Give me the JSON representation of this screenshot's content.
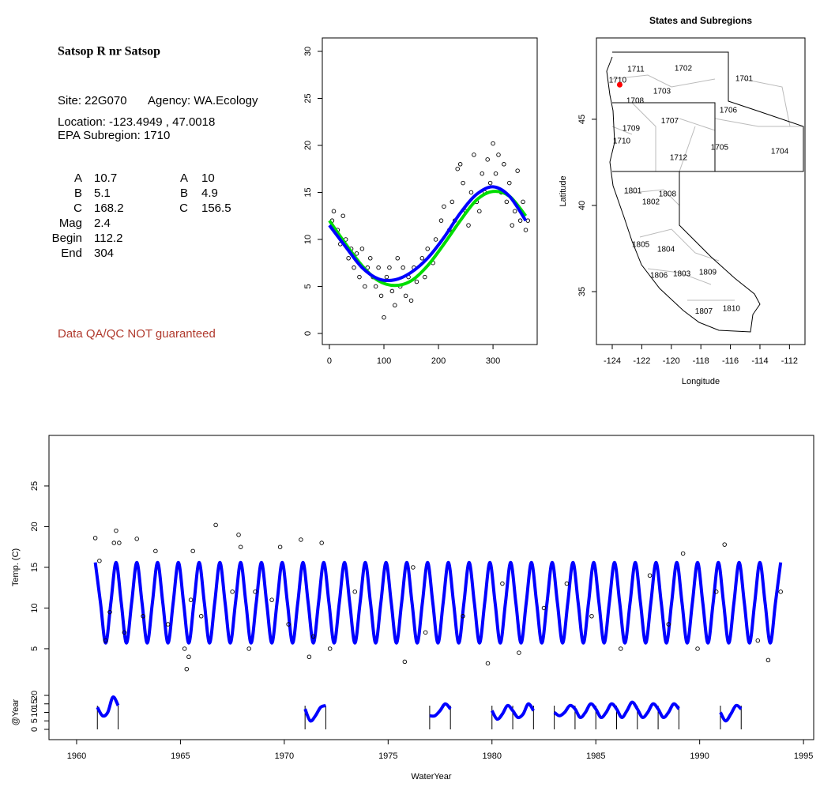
{
  "info": {
    "title": "Satsop R nr Satsop",
    "site": "Site: 22G070",
    "agency": "Agency: WA.Ecology",
    "location": "Location: -123.4949 , 47.0018",
    "subregion": "EPA Subregion: 1710",
    "params": [
      [
        "A",
        10.7,
        "A",
        10
      ],
      [
        "B",
        5.1,
        "B",
        4.9
      ],
      [
        "C",
        168.2,
        "C",
        156.5
      ],
      [
        "Mag",
        2.4
      ],
      [
        "Begin",
        112.2
      ],
      [
        "End",
        304
      ]
    ],
    "note": "Data QA/QC NOT guaranteed"
  },
  "chart_data": [
    {
      "type": "scatter",
      "xlim": [
        -13,
        381
      ],
      "ylim": [
        -1.18,
        31.43
      ],
      "xticks": [
        0,
        100,
        200,
        300
      ],
      "yticks": [
        0,
        5,
        10,
        15,
        20,
        25,
        30
      ],
      "series": [
        {
          "type": "scatter",
          "color": "#000000",
          "x": [
            5,
            8,
            15,
            20,
            25,
            30,
            35,
            40,
            45,
            50,
            55,
            60,
            65,
            70,
            75,
            80,
            85,
            90,
            95,
            100,
            105,
            110,
            115,
            120,
            125,
            130,
            135,
            140,
            145,
            150,
            155,
            160,
            170,
            175,
            180,
            190,
            195,
            205,
            210,
            220,
            225,
            230,
            235,
            240,
            245,
            250,
            255,
            260,
            265,
            270,
            275,
            280,
            285,
            290,
            295,
            300,
            305,
            310,
            315,
            320,
            325,
            330,
            335,
            340,
            345,
            350,
            355,
            360,
            364
          ],
          "values": [
            12,
            13,
            11,
            9.5,
            12.5,
            10,
            8,
            9,
            7,
            8.5,
            6,
            9,
            5,
            7,
            8,
            6,
            5,
            7,
            4,
            1.7,
            6,
            7,
            4.5,
            3,
            8,
            5,
            7,
            4,
            6,
            3.5,
            7,
            5.5,
            8,
            6,
            9,
            7.5,
            10,
            12,
            13.5,
            11,
            14,
            12,
            17.5,
            18,
            16,
            13,
            11.5,
            15,
            19,
            14,
            13,
            17,
            15,
            18.5,
            16,
            20.2,
            17,
            19,
            15,
            18,
            14,
            16,
            11.5,
            13,
            17.3,
            12,
            14,
            11,
            12
          ]
        },
        {
          "type": "line",
          "color": "#00dd00",
          "x": [
            0,
            30,
            60,
            90,
            120,
            150,
            180,
            210,
            240,
            270,
            300,
            330,
            360
          ],
          "values": [
            12,
            9.5,
            7.2,
            5.6,
            5.1,
            5.6,
            7.2,
            9.5,
            12,
            14.2,
            15.1,
            14.6,
            12.5
          ]
        },
        {
          "type": "line",
          "color": "#0000ff",
          "x": [
            0,
            30,
            60,
            90,
            120,
            150,
            180,
            210,
            240,
            270,
            300,
            330,
            360
          ],
          "values": [
            11.5,
            9.2,
            7,
            5.8,
            5.7,
            6.5,
            8,
            10.2,
            12.8,
            14.8,
            15.6,
            14.6,
            12
          ]
        }
      ]
    },
    {
      "type": "map",
      "title": "States and Subregions",
      "xlabel": "Longitude",
      "ylabel": "Latitude",
      "xlim": [
        -125.07,
        -110.95
      ],
      "ylim": [
        31.93,
        49.72
      ],
      "xticks": [
        -124,
        -122,
        -120,
        -118,
        -116,
        -114,
        -112
      ],
      "yticks": [
        35,
        40,
        45
      ],
      "regions": [
        {
          "label": "1702",
          "x": -119.19,
          "y": 47.94
        },
        {
          "label": "1701",
          "x": -115.07,
          "y": 47.34
        },
        {
          "label": "1711",
          "x": -122.4,
          "y": 47.89
        },
        {
          "label": "1710",
          "x": -123.63,
          "y": 47.25
        },
        {
          "label": "1703",
          "x": -120.63,
          "y": 46.6
        },
        {
          "label": "1708",
          "x": -122.45,
          "y": 46.06
        },
        {
          "label": "1706",
          "x": -116.14,
          "y": 45.5
        },
        {
          "label": "1707",
          "x": -120.1,
          "y": 44.9
        },
        {
          "label": "1709",
          "x": -122.72,
          "y": 44.45
        },
        {
          "label": "1710",
          "x": -123.36,
          "y": 43.72
        },
        {
          "label": "1705",
          "x": -116.73,
          "y": 43.35
        },
        {
          "label": "1704",
          "x": -112.66,
          "y": 43.12
        },
        {
          "label": "1712",
          "x": -119.51,
          "y": 42.75
        },
        {
          "label": "1801",
          "x": -122.6,
          "y": 40.83
        },
        {
          "label": "1808",
          "x": -120.26,
          "y": 40.64
        },
        {
          "label": "1802",
          "x": -121.38,
          "y": 40.18
        },
        {
          "label": "1805",
          "x": -122.07,
          "y": 37.71
        },
        {
          "label": "1804",
          "x": -120.36,
          "y": 37.43
        },
        {
          "label": "1806",
          "x": -120.84,
          "y": 35.92
        },
        {
          "label": "1803",
          "x": -119.29,
          "y": 36.01
        },
        {
          "label": "1809",
          "x": -117.53,
          "y": 36.1
        },
        {
          "label": "1810",
          "x": -115.93,
          "y": 33.99
        },
        {
          "label": "1807",
          "x": -117.8,
          "y": 33.85
        }
      ],
      "site": {
        "x": -123.4949,
        "y": 47.0018,
        "color": "#ff0000"
      }
    },
    {
      "type": "line",
      "xlabel": "WaterYear",
      "ylabel": "Temp. (C)",
      "y2label": "@Year",
      "xlim": [
        1958.67,
        1995.49
      ],
      "ylim": [
        -6.17,
        31.21
      ],
      "y2lim": [
        -6.05,
        173
      ],
      "xticks": [
        1960,
        1965,
        1970,
        1975,
        1980,
        1985,
        1990,
        1995
      ],
      "yticks": [
        5,
        10,
        15,
        20,
        25
      ],
      "y2ticks": [
        0,
        5,
        10,
        15,
        20
      ],
      "year_marks": [
        1961,
        1962,
        1971,
        1972,
        1977,
        1978,
        1980,
        1981,
        1982,
        1983,
        1984,
        1985,
        1986,
        1987,
        1988,
        1989,
        1991,
        1992
      ],
      "series": [
        {
          "type": "line",
          "color": "#0000ff",
          "x": [
            1960.9,
            1961.15,
            1961.4,
            1961.65,
            1961.9,
            1962.15,
            1962.4,
            1962.65,
            1962.9,
            1963.15,
            1963.4,
            1963.65,
            1963.9,
            1964.15,
            1964.4,
            1964.65,
            1964.9,
            1965.15,
            1965.4,
            1965.65,
            1965.9,
            1966.15,
            1966.4,
            1966.65,
            1966.9,
            1967.15,
            1967.4,
            1967.65,
            1967.9,
            1968.15,
            1968.4,
            1968.65,
            1968.9,
            1969.15,
            1969.4,
            1969.65,
            1969.9,
            1970.15,
            1970.4,
            1970.65,
            1970.9,
            1971.15,
            1971.4,
            1971.65,
            1971.9,
            1972.15,
            1972.4,
            1972.65,
            1972.9,
            1973.15,
            1973.4,
            1973.65,
            1973.9,
            1974.15,
            1974.4,
            1974.65,
            1974.9,
            1975.15,
            1975.4,
            1975.65,
            1975.9,
            1976.15,
            1976.4,
            1976.65,
            1976.9,
            1977.15,
            1977.4,
            1977.65,
            1977.9,
            1978.15,
            1978.4,
            1978.65,
            1978.9,
            1979.15,
            1979.4,
            1979.65,
            1979.9,
            1980.15,
            1980.4,
            1980.65,
            1980.9,
            1981.15,
            1981.4,
            1981.65,
            1981.9,
            1982.15,
            1982.4,
            1982.65,
            1982.9,
            1983.15,
            1983.4,
            1983.65,
            1983.9,
            1984.15,
            1984.4,
            1984.65,
            1984.9,
            1985.15,
            1985.4,
            1985.65,
            1985.9,
            1986.15,
            1986.4,
            1986.65,
            1986.9,
            1987.15,
            1987.4,
            1987.65,
            1987.9,
            1988.15,
            1988.4,
            1988.65,
            1988.9,
            1989.15,
            1989.4,
            1989.65,
            1989.9,
            1990.15,
            1990.4,
            1990.65,
            1990.9,
            1991.15,
            1991.4,
            1991.65,
            1991.9,
            1992.15,
            1992.4,
            1992.65,
            1992.9,
            1993.15,
            1993.4,
            1993.65,
            1993.9
          ],
          "values": [
            15.6,
            10.65,
            5.7,
            10.65,
            15.6,
            10.65,
            5.7,
            10.65,
            15.6,
            10.65,
            5.7,
            10.65,
            15.6,
            10.65,
            5.7,
            10.65,
            15.6,
            10.65,
            5.7,
            10.65,
            15.6,
            10.65,
            5.7,
            10.65,
            15.6,
            10.65,
            5.7,
            10.65,
            15.6,
            10.65,
            5.7,
            10.65,
            15.6,
            10.65,
            5.7,
            10.65,
            15.6,
            10.65,
            5.7,
            10.65,
            15.6,
            10.65,
            5.7,
            10.65,
            15.6,
            10.65,
            5.7,
            10.65,
            15.6,
            10.65,
            5.7,
            10.65,
            15.6,
            10.65,
            5.7,
            10.65,
            15.6,
            10.65,
            5.7,
            10.65,
            15.6,
            10.65,
            5.7,
            10.65,
            15.6,
            10.65,
            5.7,
            10.65,
            15.6,
            10.65,
            5.7,
            10.65,
            15.6,
            10.65,
            5.7,
            10.65,
            15.6,
            10.65,
            5.7,
            10.65,
            15.6,
            10.65,
            5.7,
            10.65,
            15.6,
            10.65,
            5.7,
            10.65,
            15.6,
            10.65,
            5.7,
            10.65,
            15.6,
            10.65,
            5.7,
            10.65,
            15.6,
            10.65,
            5.7,
            10.65,
            15.6,
            10.65,
            5.7,
            10.65,
            15.6,
            10.65,
            5.7,
            10.65,
            15.6,
            10.65,
            5.7,
            10.65,
            15.6,
            10.65,
            5.7,
            10.65,
            15.6,
            10.65,
            5.7,
            10.65,
            15.6,
            10.65,
            5.7,
            10.65,
            15.6,
            10.65,
            5.7,
            10.65,
            15.6,
            10.65,
            5.7,
            10.65,
            15.6
          ]
        },
        {
          "type": "scatter",
          "color": "#000000",
          "x": [
            1960.9,
            1961.1,
            1961.4,
            1961.6,
            1961.8,
            1961.9,
            1962.05,
            1962.3,
            1962.9,
            1963.2,
            1963.8,
            1964.4,
            1965.2,
            1965.3,
            1965.4,
            1965.5,
            1965.6,
            1966,
            1966.7,
            1967.5,
            1967.8,
            1967.9,
            1968.3,
            1968.6,
            1969.4,
            1969.8,
            1970.2,
            1970.8,
            1971.2,
            1971.4,
            1971.8,
            1972.2,
            1973.4,
            1975.8,
            1976.2,
            1976.8,
            1978.6,
            1979.8,
            1980.5,
            1981.3,
            1982.5,
            1983.6,
            1984.8,
            1986.2,
            1987.6,
            1988.5,
            1989.2,
            1989.9,
            1990.8,
            1991.2,
            1992.8,
            1993.3,
            1993.9
          ],
          "values": [
            18.6,
            15.8,
            6,
            9.5,
            18,
            19.5,
            18,
            7,
            18.5,
            9,
            17,
            8,
            5,
            2.5,
            4,
            11,
            17,
            9,
            20.2,
            12,
            19,
            17.5,
            5,
            12,
            11,
            17.5,
            8,
            18.4,
            4,
            6.5,
            18,
            5,
            12,
            3.4,
            15,
            7,
            9,
            3.2,
            13,
            4.5,
            10,
            13,
            9,
            5,
            14,
            8,
            16.7,
            5,
            12,
            17.8,
            6,
            3.6,
            12
          ]
        },
        {
          "type": "line",
          "color": "#0000ff",
          "axis": "y2",
          "x": [
            1961,
            1961.25,
            1961.5,
            1961.75,
            1962,
            null,
            1971,
            1971.25,
            1971.5,
            1971.75,
            1972,
            null,
            1977,
            1977.25,
            1977.5,
            1977.75,
            1978,
            null,
            1980,
            1980.25,
            1980.5,
            1980.75,
            1981,
            1981.25,
            1981.5,
            1981.75,
            1982,
            null,
            1983,
            1983.25,
            1983.5,
            1983.75,
            1984,
            1984.25,
            1984.5,
            1984.75,
            1985,
            1985.25,
            1985.5,
            1985.75,
            1986,
            1986.25,
            1986.5,
            1986.75,
            1987,
            1987.25,
            1987.5,
            1987.75,
            1988,
            1988.25,
            1988.5,
            1988.75,
            1989,
            null,
            1991,
            1991.25,
            1991.5,
            1991.75,
            1992
          ],
          "values": [
            13,
            8,
            10,
            19,
            14,
            null,
            12,
            5,
            8,
            13,
            14,
            null,
            8,
            8,
            11,
            15,
            12,
            null,
            11,
            6,
            9,
            14,
            11,
            7,
            9,
            15,
            11,
            null,
            10,
            8,
            10,
            14,
            12,
            7,
            10,
            15,
            12,
            7,
            10,
            15,
            12,
            7,
            11,
            16,
            12,
            7,
            10,
            15,
            12,
            7,
            10,
            15,
            12,
            null,
            10,
            5,
            9,
            14,
            12
          ]
        }
      ]
    }
  ]
}
